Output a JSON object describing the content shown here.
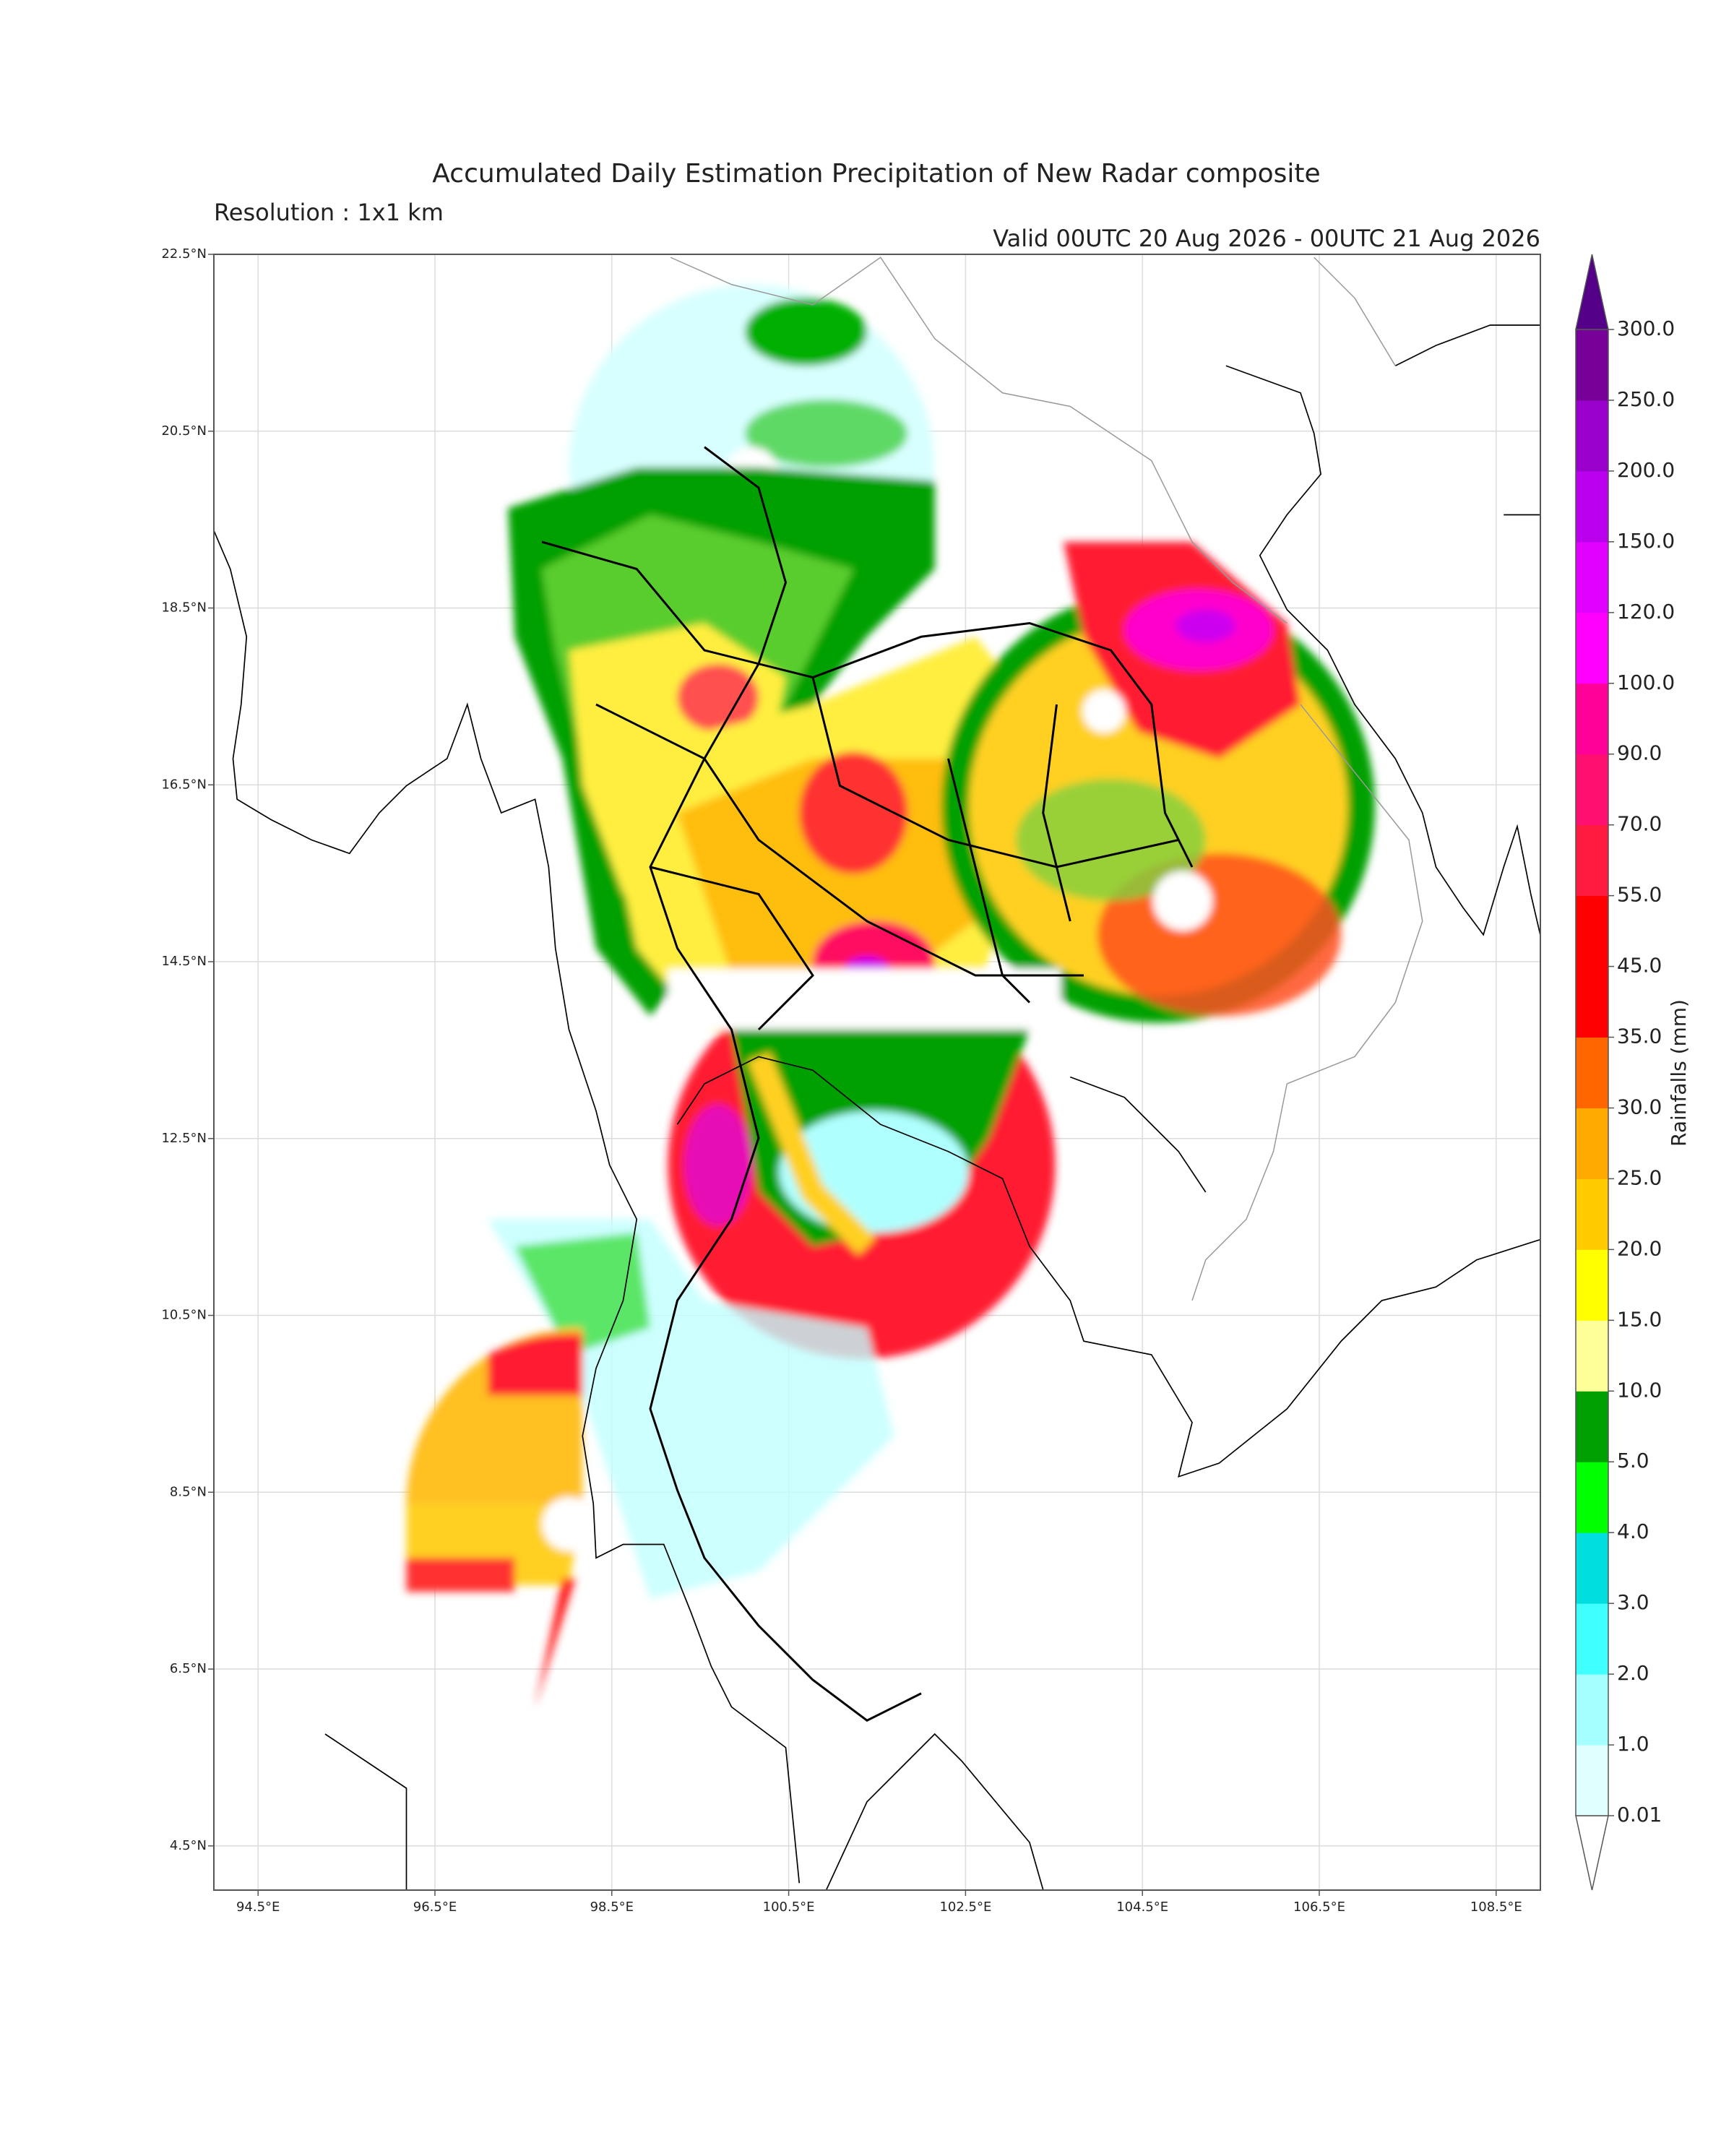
{
  "title": "Accumulated Daily Estimation Precipitation of New Radar composite",
  "subtitle": "Resolution : 1x1 km",
  "valid": "Valid 00UTC 20 Aug 2026 - 00UTC 21 Aug 2026",
  "map": {
    "xlim": [
      94,
      109
    ],
    "ylim": [
      4,
      22.5
    ],
    "grid": true,
    "xticks": [
      {
        "value": 94.5,
        "label": "94.5°E"
      },
      {
        "value": 96.5,
        "label": "96.5°E"
      },
      {
        "value": 98.5,
        "label": "98.5°E"
      },
      {
        "value": 100.5,
        "label": "100.5°E"
      },
      {
        "value": 102.5,
        "label": "102.5°E"
      },
      {
        "value": 104.5,
        "label": "104.5°E"
      },
      {
        "value": 106.5,
        "label": "106.5°E"
      },
      {
        "value": 108.5,
        "label": "108.5°E"
      }
    ],
    "yticks": [
      {
        "value": 4.5,
        "label": "4.5°N"
      },
      {
        "value": 6.5,
        "label": "6.5°N"
      },
      {
        "value": 8.5,
        "label": "8.5°N"
      },
      {
        "value": 10.5,
        "label": "10.5°N"
      },
      {
        "value": 12.5,
        "label": "12.5°N"
      },
      {
        "value": 14.5,
        "label": "14.5°N"
      },
      {
        "value": 16.5,
        "label": "16.5°N"
      },
      {
        "value": 18.5,
        "label": "18.5°N"
      },
      {
        "value": 20.5,
        "label": "20.5°N"
      },
      {
        "value": 22.5,
        "label": "22.5°N"
      }
    ]
  },
  "colorbar": {
    "label": "Rainfalls (mm)",
    "levels": [
      0.01,
      {
        "value": 1,
        "label": "1.0"
      },
      {
        "value": 2,
        "label": "2.0"
      },
      {
        "value": 3,
        "label": "3.0"
      },
      {
        "value": 4,
        "label": "4.0"
      },
      {
        "value": 5,
        "label": "5.0"
      },
      {
        "value": 10,
        "label": "10.0"
      },
      {
        "value": 15,
        "label": "15.0"
      },
      {
        "value": 20,
        "label": "20.0"
      },
      {
        "value": 25,
        "label": "25.0"
      },
      {
        "value": 30,
        "label": "30.0"
      },
      {
        "value": 35,
        "label": "35.0"
      },
      {
        "value": 45,
        "label": "45.0"
      },
      {
        "value": 55,
        "label": "55.0"
      },
      {
        "value": 70,
        "label": "70.0"
      },
      {
        "value": 90,
        "label": "90.0"
      },
      {
        "value": 100,
        "label": "100.0"
      },
      {
        "value": 120,
        "label": "120.0"
      },
      {
        "value": 150,
        "label": "150.0"
      },
      {
        "value": 200,
        "label": "200.0"
      },
      {
        "value": 250,
        "label": "250.0"
      },
      {
        "value": 300,
        "label": "300.0"
      }
    ],
    "colors": [
      "#e0ffff",
      "#a6ffff",
      "#40ffff",
      "#00dede",
      "#00ff00",
      "#00a000",
      "#ffff99",
      "#ffff00",
      "#ffcc00",
      "#ffaa00",
      "#ff6600",
      "#ff0000",
      "#ff0000",
      "#ff1a40",
      "#ff1070",
      "#ff0099",
      "#ff00ff",
      "#e000ff",
      "#bb00ee",
      "#9900cc",
      "#770099"
    ],
    "under_color": "#ffffff",
    "over_color": "#550088"
  }
}
